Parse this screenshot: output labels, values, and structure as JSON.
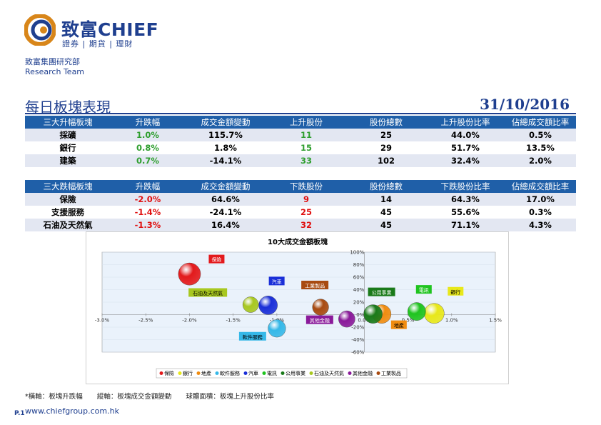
{
  "header": {
    "brand_name": "致富CHIEF",
    "brand_tagline": "證券 | 期貨 | 理財",
    "team_cn": "致富集團研究部",
    "team_en": "Research Team"
  },
  "page_title": "每日板塊表現",
  "date": "31/10/2016",
  "colors": {
    "brand_blue": "#1f3f8f",
    "table_header": "#1f5fa8",
    "row_alt": "#e3e7f2",
    "up": "#2e9e2e",
    "down": "#e01010"
  },
  "gainers_table": {
    "headers": [
      "三大升幅板塊",
      "升跌幅",
      "成交金額變動",
      "上升股份",
      "股份總數",
      "上升股份比率",
      "佔總成交額比率"
    ],
    "rows": [
      [
        "採礦",
        "1.0%",
        "115.7%",
        "11",
        "25",
        "44.0%",
        "0.5%"
      ],
      [
        "銀行",
        "0.8%",
        "1.8%",
        "15",
        "29",
        "51.7%",
        "13.5%"
      ],
      [
        "建築",
        "0.7%",
        "-14.1%",
        "33",
        "102",
        "32.4%",
        "2.0%"
      ]
    ]
  },
  "losers_table": {
    "headers": [
      "三大跌幅板塊",
      "升跌幅",
      "成交金額變動",
      "下跌股份",
      "股份總數",
      "下跌股份比率",
      "佔總成交額比率"
    ],
    "rows": [
      [
        "保險",
        "-2.0%",
        "64.6%",
        "9",
        "14",
        "64.3%",
        "17.0%"
      ],
      [
        "支援服務",
        "-1.4%",
        "-24.1%",
        "25",
        "45",
        "55.6%",
        "0.3%"
      ],
      [
        "石油及天然氣",
        "-1.3%",
        "16.4%",
        "32",
        "45",
        "71.1%",
        "4.3%"
      ]
    ]
  },
  "chart_data": {
    "type": "scatter",
    "title": "10大成交金額板塊",
    "xlim": [
      -3.0,
      1.5
    ],
    "ylim": [
      -60,
      100
    ],
    "x_ticks": [
      "-3.0%",
      "-2.5%",
      "-2.0%",
      "-1.5%",
      "-1.0%",
      "-0.5%",
      "0.0%",
      "0.5%",
      "1.0%",
      "1.5%"
    ],
    "y_ticks": [
      "-60%",
      "-40%",
      "-20%",
      "0%",
      "20%",
      "40%",
      "60%",
      "80%",
      "100%"
    ],
    "legend_position": "bottom",
    "series": [
      {
        "name": "保險",
        "x": -2.0,
        "y": 65,
        "size": 64,
        "color": "#e31a1c",
        "label_bg": "#e31a1c"
      },
      {
        "name": "銀行",
        "x": 0.8,
        "y": 2,
        "size": 52,
        "color": "#e8e81a",
        "label_bg": "#e8e81a"
      },
      {
        "name": "地產",
        "x": 0.2,
        "y": 1,
        "size": 45,
        "color": "#f08c10",
        "label_bg": "#f08c10"
      },
      {
        "name": "軟件服務",
        "x": -1.0,
        "y": -22,
        "size": 40,
        "color": "#35b8e8",
        "label_bg": "#35b8e8"
      },
      {
        "name": "汽車",
        "x": -1.1,
        "y": 15,
        "size": 45,
        "color": "#1a2fd8",
        "label_bg": "#1a2fd8"
      },
      {
        "name": "電訊",
        "x": 0.6,
        "y": 5,
        "size": 42,
        "color": "#1fc41f",
        "label_bg": "#1fc41f"
      },
      {
        "name": "公用事業",
        "x": 0.1,
        "y": 1,
        "size": 45,
        "color": "#1a7a1a",
        "label_bg": "#1a7a1a"
      },
      {
        "name": "石油及天然氣",
        "x": -1.3,
        "y": 16,
        "size": 32,
        "color": "#a8c820",
        "label_bg": "#a8c820"
      },
      {
        "name": "其他金融",
        "x": -0.2,
        "y": -7,
        "size": 35,
        "color": "#8a1a9a",
        "label_bg": "#8a1a9a"
      },
      {
        "name": "工業製品",
        "x": -0.5,
        "y": 12,
        "size": 34,
        "color": "#a84a10",
        "label_bg": "#a84a10"
      }
    ]
  },
  "footnote": {
    "x_desc": "*橫軸：板塊升跌幅",
    "y_desc": "縱軸：板塊成交金額變動",
    "size_desc": "球體面積：板塊上升股份比率"
  },
  "page_number": "P.1",
  "website": "www.chiefgroup.com.hk"
}
